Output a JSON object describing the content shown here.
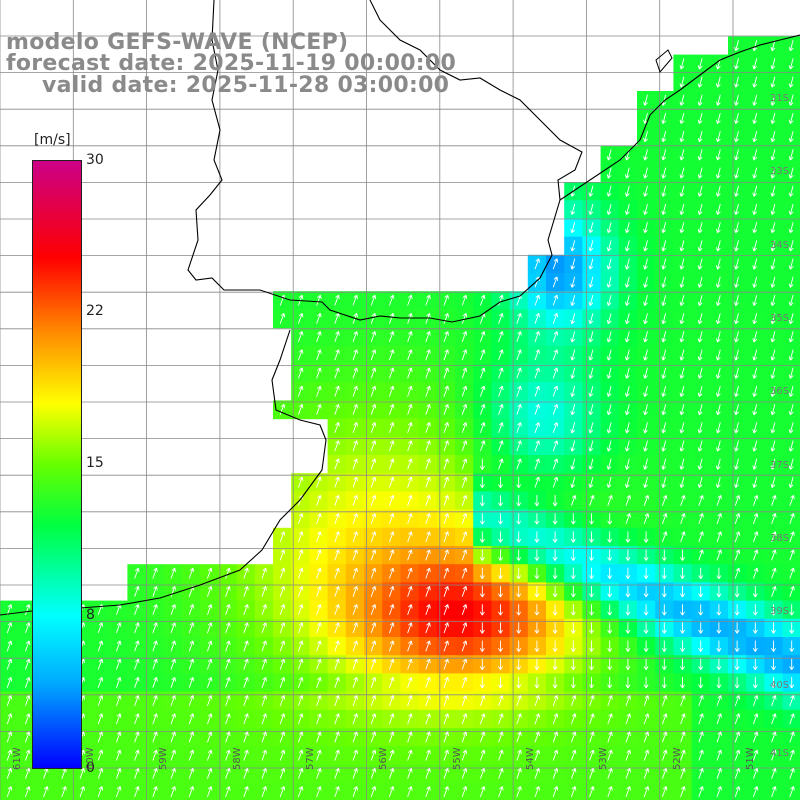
{
  "header": {
    "line1": "modelo GEFS-WAVE (NCEP)",
    "line2": "forecast date: 2025-11-19 00:00:00",
    "line3": "valid date: 2025-11-28 03:00:00"
  },
  "colorbar": {
    "unit": "[m/s]",
    "ticks": [
      "30",
      "22",
      "15",
      "8",
      "0"
    ],
    "min": 0,
    "max": 30,
    "colors": [
      "#0000ff",
      "#00aaff",
      "#00ffff",
      "#00ff40",
      "#66ff00",
      "#ffff00",
      "#ff8800",
      "#ff0000",
      "#cc0088"
    ]
  },
  "map": {
    "lon_labels": [
      "61W",
      "60W",
      "59W",
      "58W",
      "57W",
      "56W",
      "55W",
      "54W",
      "53W",
      "52W",
      "51W"
    ],
    "lat_labels": [
      "31S",
      "33S",
      "34S",
      "35S",
      "36S",
      "37S",
      "38S",
      "39S",
      "40S",
      "41S"
    ],
    "land_color": "#ffffff",
    "coast_color": "#000000",
    "grid_color": "#888888"
  }
}
